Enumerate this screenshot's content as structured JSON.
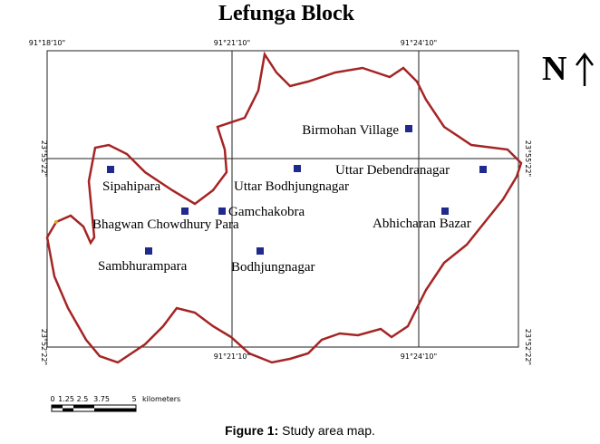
{
  "header": {
    "title": "Lefunga Block"
  },
  "coordinates": {
    "top": [
      "91°18'10\"",
      "91°21'10\"",
      "91°24'10\""
    ],
    "bottom": [
      "91°21'10\"",
      "91°24'10\""
    ],
    "left": [
      "23°55'22\"",
      "23°52'22\""
    ],
    "right": [
      "23°55'22\"",
      "23°52'22\""
    ]
  },
  "north": "N",
  "places": [
    "Birmohan Village",
    "Sipahipara",
    "Uttar Bodhjungnagar",
    "Uttar Debendranagar",
    "Gamchakobra",
    "Bhagwan Chowdhury Para",
    "Abhicharan Bazar",
    "Sambhurampara",
    "Bodhjungnagar"
  ],
  "scale": {
    "ticks": [
      "0",
      "1.25",
      "2.5",
      "3.75",
      "5"
    ],
    "unit": "kilometers"
  },
  "caption": {
    "label": "Figure 1:",
    "text": "Study area map."
  }
}
